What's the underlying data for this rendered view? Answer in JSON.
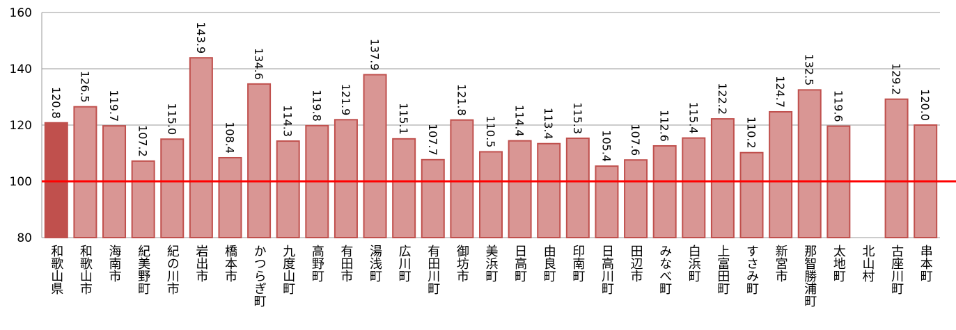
{
  "chart_data": {
    "type": "bar",
    "categories": [
      "和歌山県",
      "和歌山市",
      "海南市",
      "紀美野町",
      "紀の川市",
      "岩出市",
      "橋本市",
      "かつらぎ町",
      "九度山町",
      "高野町",
      "有田市",
      "湯浅町",
      "広川町",
      "有田川町",
      "御坊市",
      "美浜町",
      "日高町",
      "由良町",
      "印南町",
      "日高川町",
      "田辺市",
      "みなべ町",
      "白浜町",
      "上富田町",
      "すさみ町",
      "新宮市",
      "那智勝浦町",
      "太地町",
      "北山村",
      "古座川町",
      "串本町"
    ],
    "values": [
      120.8,
      126.5,
      119.7,
      107.2,
      115.0,
      143.9,
      108.4,
      134.6,
      114.3,
      119.8,
      121.9,
      137.9,
      115.1,
      107.7,
      121.8,
      110.5,
      114.4,
      113.4,
      115.3,
      105.4,
      107.6,
      112.6,
      115.4,
      122.2,
      110.2,
      124.7,
      132.5,
      119.6,
      null,
      129.2,
      120.0
    ],
    "value_labels": [
      "120.8",
      "126.5",
      "119.7",
      "107.2",
      "115.0",
      "143.9",
      "108.4",
      "134.6",
      "114.3",
      "119.8",
      "121.9",
      "137.9",
      "115.1",
      "107.7",
      "121.8",
      "110.5",
      "114.4",
      "113.4",
      "115.3",
      "105.4",
      "107.6",
      "112.6",
      "115.4",
      "122.2",
      "110.2",
      "124.7",
      "132.5",
      "119.6",
      null,
      "129.2",
      "120.0"
    ],
    "colors": [
      "#c0504d",
      "#d99694",
      "#d99694",
      "#d99694",
      "#d99694",
      "#d99694",
      "#d99694",
      "#d99694",
      "#d99694",
      "#d99694",
      "#d99694",
      "#d99694",
      "#d99694",
      "#d99694",
      "#d99694",
      "#d99694",
      "#d99694",
      "#d99694",
      "#d99694",
      "#d99694",
      "#d99694",
      "#d99694",
      "#d99694",
      "#d99694",
      "#d99694",
      "#d99694",
      "#d99694",
      "#d99694",
      "#d99694",
      "#d99694",
      "#d99694"
    ],
    "edge_color": "#c0504d",
    "ylim": [
      80,
      160
    ],
    "yticks": [
      80,
      100,
      120,
      140,
      160
    ],
    "grid": true,
    "reference_line": {
      "value": 100,
      "color": "#ff0000"
    }
  }
}
